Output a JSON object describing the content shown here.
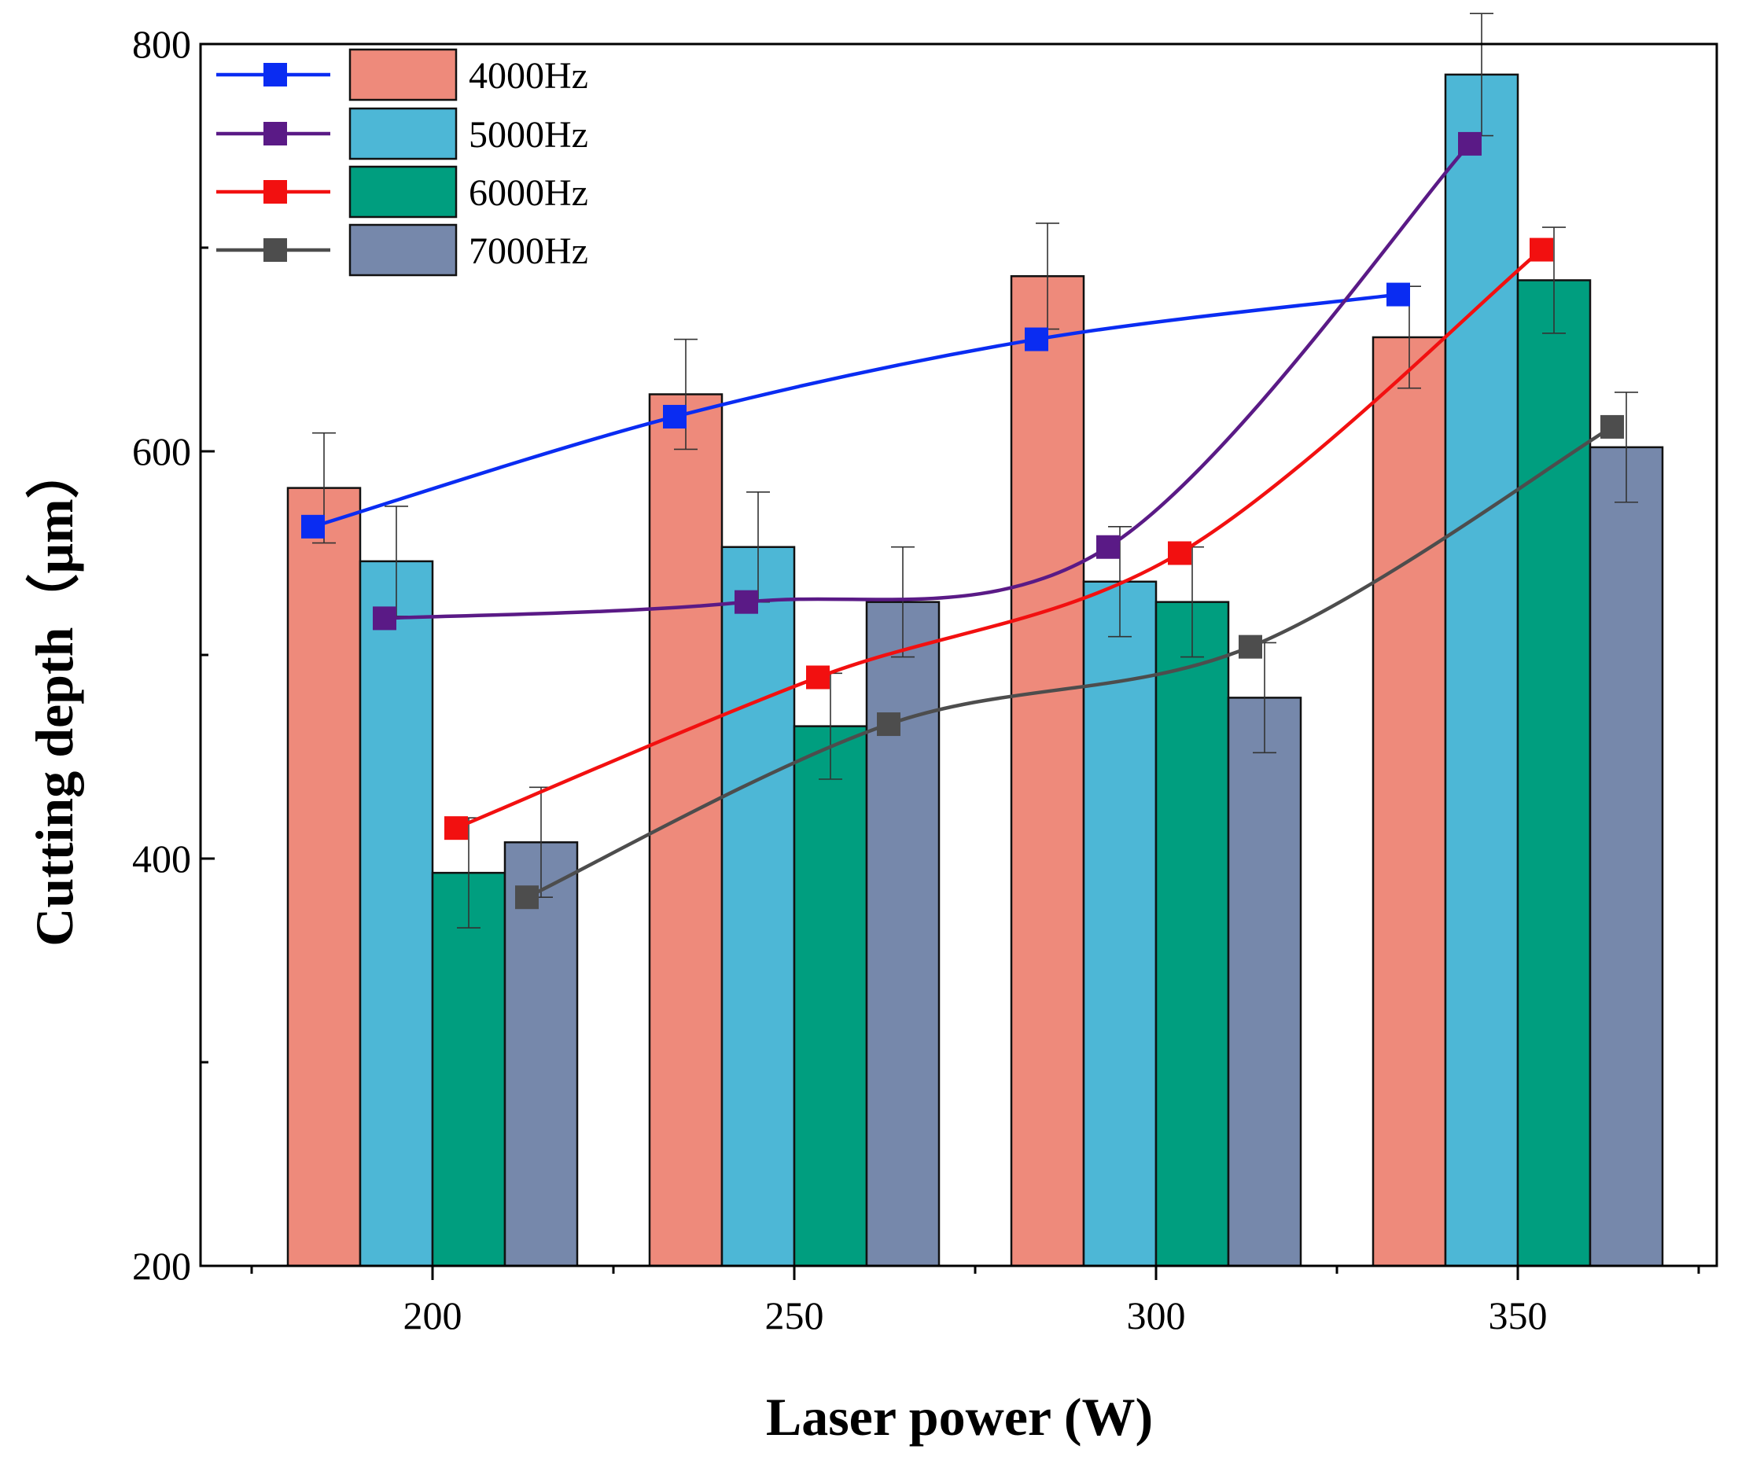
{
  "chart_data": {
    "type": "bar",
    "title": "",
    "xlabel": "Laser power (W)",
    "ylabel": "Cutting depth（μm）",
    "categories": [
      "200",
      "250",
      "300",
      "350"
    ],
    "ylim": [
      200,
      800
    ],
    "yticks": [
      200,
      400,
      600,
      800
    ],
    "ytick_labels": [
      "200",
      "400",
      "600",
      "800"
    ],
    "legend_position": "top-left",
    "series": [
      {
        "name": "4000Hz",
        "bar_color": "#ee8a7b",
        "line_color": "#0a2cf2",
        "values": [
          582,
          628,
          686,
          656
        ],
        "errors": [
          27,
          27,
          26,
          25
        ],
        "line_values": [
          563,
          617,
          655,
          677
        ]
      },
      {
        "name": "5000Hz",
        "bar_color": "#4db7d6",
        "line_color": "#5a1a86",
        "values": [
          546,
          553,
          536,
          785
        ],
        "errors": [
          27,
          27,
          27,
          30
        ],
        "line_values": [
          518,
          526,
          553,
          751
        ]
      },
      {
        "name": "6000Hz",
        "bar_color": "#009e7f",
        "line_color": "#f21010",
        "values": [
          393,
          465,
          526,
          684
        ],
        "errors": [
          27,
          26,
          27,
          26
        ],
        "line_values": [
          415,
          489,
          550,
          699
        ]
      },
      {
        "name": "7000Hz",
        "bar_color": "#7688ab",
        "line_color": "#4d4d4d",
        "values": [
          408,
          526,
          479,
          602
        ],
        "errors": [
          27,
          27,
          27,
          27
        ],
        "line_values": [
          381,
          466,
          504,
          612
        ]
      }
    ]
  }
}
